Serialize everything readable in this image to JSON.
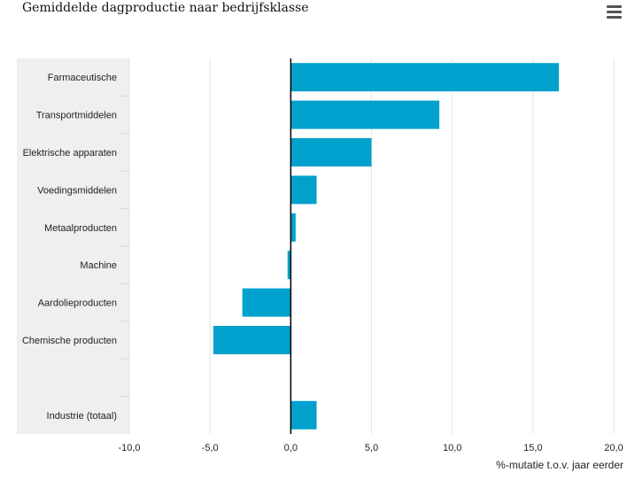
{
  "title": "Gemiddelde dagproductie naar bedrijfsklasse",
  "menu_icon": "hamburger-icon",
  "colors": {
    "bar": "#00a1cd",
    "label_band": "#efefef",
    "grid": "#e6e6e6",
    "zero_line": "#000000"
  },
  "chart_data": {
    "type": "bar",
    "orientation": "horizontal",
    "title": "Gemiddelde dagproductie naar bedrijfsklasse",
    "xlabel": "%-mutatie t.o.v. jaar eerder",
    "ylabel": "",
    "xlim": [
      -10,
      20
    ],
    "xticks": [
      -10,
      -5,
      0,
      5,
      10,
      15,
      20
    ],
    "xtick_labels": [
      "-10,0",
      "-5,0",
      "0,0",
      "5,0",
      "10,0",
      "15,0",
      "20,0"
    ],
    "grid": true,
    "categories": [
      "Farmaceutische",
      "Transportmiddelen",
      "Elektrische apparaten",
      "Voedingsmiddelen",
      "Metaalproducten",
      "Machine",
      "Aardolieproducten",
      "Chemische producten",
      "",
      "Industrie (totaal)"
    ],
    "values": [
      16.6,
      9.2,
      5.0,
      1.6,
      0.3,
      -0.2,
      -3.0,
      -4.8,
      null,
      1.6
    ]
  }
}
